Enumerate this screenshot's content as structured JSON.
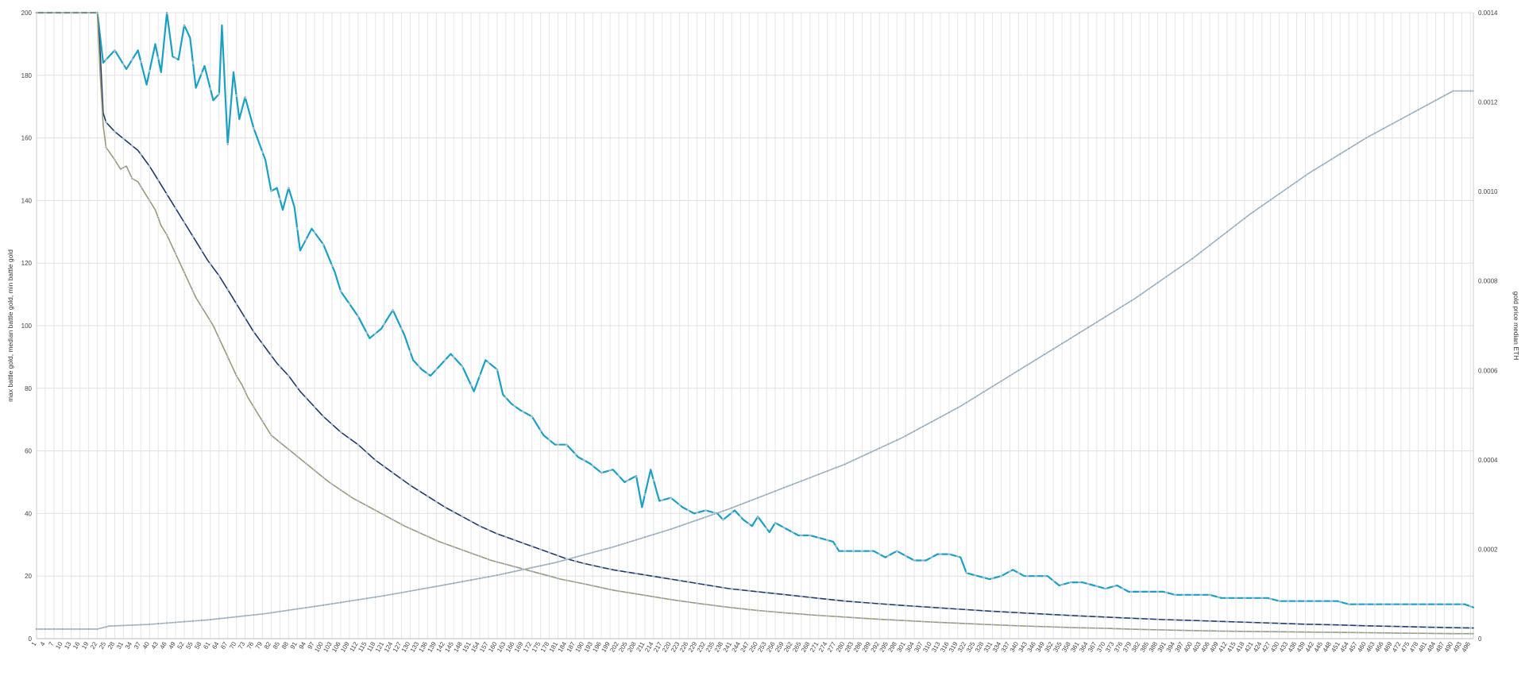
{
  "chart_data": {
    "type": "line",
    "x_start": 1,
    "x_end": 497,
    "xlim": [
      1,
      497
    ],
    "ylim_left": [
      0,
      200
    ],
    "ylim_right": [
      0,
      0.0014
    ],
    "y_left_ticks": [
      "0",
      "20",
      "40",
      "60",
      "80",
      "100",
      "120",
      "140",
      "160",
      "180",
      "200"
    ],
    "y_right_ticks": [
      "0",
      "0.0002",
      "0.0004",
      "0.0006",
      "0.0008",
      "0.0010",
      "0.0012",
      "0.0014"
    ],
    "ylabel_left": "max battle gold, median battle gold, min battle gold",
    "ylabel_right": "gold price median ETH",
    "grid": true,
    "x_tick_step": 3,
    "series": [
      {
        "name": "max battle gold",
        "axis": "left",
        "color": "#1aa0c4",
        "points": [
          [
            1,
            200
          ],
          [
            22,
            200
          ],
          [
            24,
            184
          ],
          [
            28,
            188
          ],
          [
            32,
            182
          ],
          [
            36,
            188
          ],
          [
            39,
            177
          ],
          [
            42,
            190
          ],
          [
            44,
            181
          ],
          [
            46,
            200
          ],
          [
            48,
            186
          ],
          [
            50,
            185
          ],
          [
            52,
            196
          ],
          [
            54,
            192
          ],
          [
            56,
            176
          ],
          [
            59,
            183
          ],
          [
            62,
            172
          ],
          [
            64,
            174
          ],
          [
            65,
            196
          ],
          [
            67,
            158
          ],
          [
            69,
            181
          ],
          [
            71,
            166
          ],
          [
            73,
            173
          ],
          [
            76,
            163
          ],
          [
            80,
            153
          ],
          [
            82,
            143
          ],
          [
            84,
            144
          ],
          [
            86,
            137
          ],
          [
            88,
            144
          ],
          [
            90,
            138
          ],
          [
            92,
            124
          ],
          [
            96,
            131
          ],
          [
            100,
            126
          ],
          [
            104,
            117
          ],
          [
            106,
            111
          ],
          [
            109,
            107
          ],
          [
            112,
            103
          ],
          [
            116,
            96
          ],
          [
            120,
            99
          ],
          [
            124,
            105
          ],
          [
            128,
            97
          ],
          [
            131,
            89
          ],
          [
            134,
            86
          ],
          [
            137,
            84
          ],
          [
            140,
            87
          ],
          [
            144,
            91
          ],
          [
            148,
            87
          ],
          [
            152,
            79
          ],
          [
            156,
            89
          ],
          [
            160,
            86
          ],
          [
            162,
            78
          ],
          [
            165,
            75
          ],
          [
            168,
            73
          ],
          [
            172,
            71
          ],
          [
            176,
            65
          ],
          [
            180,
            62
          ],
          [
            184,
            62
          ],
          [
            188,
            58
          ],
          [
            192,
            56
          ],
          [
            196,
            53
          ],
          [
            200,
            54
          ],
          [
            204,
            50
          ],
          [
            208,
            52
          ],
          [
            210,
            42
          ],
          [
            213,
            54
          ],
          [
            216,
            44
          ],
          [
            220,
            45
          ],
          [
            224,
            42
          ],
          [
            228,
            40
          ],
          [
            232,
            41
          ],
          [
            236,
            40
          ],
          [
            238,
            38
          ],
          [
            242,
            41
          ],
          [
            245,
            38
          ],
          [
            248,
            36
          ],
          [
            250,
            39
          ],
          [
            254,
            34
          ],
          [
            256,
            37
          ],
          [
            260,
            35
          ],
          [
            264,
            33
          ],
          [
            268,
            33
          ],
          [
            272,
            32
          ],
          [
            276,
            31
          ],
          [
            278,
            28
          ],
          [
            282,
            28
          ],
          [
            286,
            28
          ],
          [
            290,
            28
          ],
          [
            294,
            26
          ],
          [
            298,
            28
          ],
          [
            302,
            26
          ],
          [
            304,
            25
          ],
          [
            308,
            25
          ],
          [
            312,
            27
          ],
          [
            316,
            27
          ],
          [
            320,
            26
          ],
          [
            322,
            21
          ],
          [
            326,
            20
          ],
          [
            330,
            19
          ],
          [
            334,
            20
          ],
          [
            338,
            22
          ],
          [
            342,
            20
          ],
          [
            346,
            20
          ],
          [
            350,
            20
          ],
          [
            354,
            17
          ],
          [
            358,
            18
          ],
          [
            362,
            18
          ],
          [
            366,
            17
          ],
          [
            370,
            16
          ],
          [
            374,
            17
          ],
          [
            378,
            15
          ],
          [
            382,
            15
          ],
          [
            386,
            15
          ],
          [
            390,
            15
          ],
          [
            394,
            14
          ],
          [
            398,
            14
          ],
          [
            402,
            14
          ],
          [
            406,
            14
          ],
          [
            410,
            13
          ],
          [
            414,
            13
          ],
          [
            418,
            13
          ],
          [
            422,
            13
          ],
          [
            426,
            13
          ],
          [
            430,
            12
          ],
          [
            434,
            12
          ],
          [
            438,
            12
          ],
          [
            442,
            12
          ],
          [
            446,
            12
          ],
          [
            450,
            12
          ],
          [
            454,
            11
          ],
          [
            458,
            11
          ],
          [
            462,
            11
          ],
          [
            466,
            11
          ],
          [
            470,
            11
          ],
          [
            474,
            11
          ],
          [
            478,
            11
          ],
          [
            482,
            11
          ],
          [
            486,
            11
          ],
          [
            490,
            11
          ],
          [
            494,
            11
          ],
          [
            497,
            10
          ]
        ]
      },
      {
        "name": "median battle gold",
        "axis": "left",
        "color": "#1f3a6b",
        "points": [
          [
            1,
            200
          ],
          [
            22,
            200
          ],
          [
            23,
            187
          ],
          [
            24,
            168
          ],
          [
            25,
            165
          ],
          [
            28,
            162
          ],
          [
            32,
            159
          ],
          [
            36,
            156
          ],
          [
            40,
            151
          ],
          [
            44,
            145
          ],
          [
            48,
            139
          ],
          [
            52,
            133
          ],
          [
            56,
            127
          ],
          [
            60,
            121
          ],
          [
            64,
            116
          ],
          [
            68,
            110
          ],
          [
            72,
            104
          ],
          [
            76,
            98
          ],
          [
            80,
            93
          ],
          [
            84,
            88
          ],
          [
            88,
            84
          ],
          [
            92,
            79
          ],
          [
            96,
            75
          ],
          [
            100,
            71
          ],
          [
            106,
            66
          ],
          [
            112,
            62
          ],
          [
            118,
            57
          ],
          [
            124,
            53
          ],
          [
            130,
            49
          ],
          [
            136,
            45.5
          ],
          [
            142,
            42
          ],
          [
            148,
            39
          ],
          [
            154,
            36
          ],
          [
            160,
            33.5
          ],
          [
            166,
            31.5
          ],
          [
            172,
            29.5
          ],
          [
            178,
            27.5
          ],
          [
            184,
            25.5
          ],
          [
            190,
            24
          ],
          [
            200,
            22
          ],
          [
            210,
            20.5
          ],
          [
            220,
            19
          ],
          [
            230,
            17.5
          ],
          [
            240,
            16
          ],
          [
            250,
            15
          ],
          [
            260,
            14
          ],
          [
            270,
            13
          ],
          [
            280,
            12
          ],
          [
            290,
            11.3
          ],
          [
            300,
            10.6
          ],
          [
            310,
            10
          ],
          [
            320,
            9.4
          ],
          [
            330,
            8.8
          ],
          [
            340,
            8.3
          ],
          [
            350,
            7.8
          ],
          [
            360,
            7.3
          ],
          [
            370,
            6.9
          ],
          [
            380,
            6.5
          ],
          [
            390,
            6.1
          ],
          [
            400,
            5.8
          ],
          [
            410,
            5.5
          ],
          [
            420,
            5.2
          ],
          [
            430,
            4.9
          ],
          [
            440,
            4.6
          ],
          [
            450,
            4.4
          ],
          [
            460,
            4.1
          ],
          [
            470,
            3.9
          ],
          [
            480,
            3.7
          ],
          [
            490,
            3.5
          ],
          [
            497,
            3.4
          ]
        ]
      },
      {
        "name": "min battle gold",
        "axis": "left",
        "color": "#9a9a7a",
        "points": [
          [
            1,
            200
          ],
          [
            22,
            200
          ],
          [
            23,
            180
          ],
          [
            24,
            164
          ],
          [
            25,
            157
          ],
          [
            28,
            153
          ],
          [
            30,
            150
          ],
          [
            32,
            151
          ],
          [
            34,
            147
          ],
          [
            36,
            146
          ],
          [
            38,
            143
          ],
          [
            40,
            140
          ],
          [
            42,
            137
          ],
          [
            44,
            132
          ],
          [
            46,
            129
          ],
          [
            48,
            125
          ],
          [
            50,
            121
          ],
          [
            52,
            117
          ],
          [
            54,
            113
          ],
          [
            56,
            109
          ],
          [
            58,
            106
          ],
          [
            60,
            103
          ],
          [
            62,
            100
          ],
          [
            64,
            96
          ],
          [
            66,
            92
          ],
          [
            68,
            88
          ],
          [
            70,
            84
          ],
          [
            72,
            81
          ],
          [
            74,
            77
          ],
          [
            76,
            74
          ],
          [
            78,
            71
          ],
          [
            80,
            68
          ],
          [
            82,
            65
          ],
          [
            86,
            62
          ],
          [
            90,
            59
          ],
          [
            94,
            56
          ],
          [
            98,
            53
          ],
          [
            102,
            50
          ],
          [
            106,
            47.5
          ],
          [
            110,
            45
          ],
          [
            116,
            42
          ],
          [
            122,
            39
          ],
          [
            128,
            36
          ],
          [
            134,
            33.5
          ],
          [
            140,
            31
          ],
          [
            146,
            29
          ],
          [
            152,
            27
          ],
          [
            158,
            25
          ],
          [
            164,
            23.5
          ],
          [
            170,
            22
          ],
          [
            176,
            20.5
          ],
          [
            182,
            19
          ],
          [
            190,
            17.5
          ],
          [
            200,
            15.5
          ],
          [
            210,
            14
          ],
          [
            220,
            12.5
          ],
          [
            230,
            11.2
          ],
          [
            240,
            10
          ],
          [
            250,
            9
          ],
          [
            260,
            8.2
          ],
          [
            270,
            7.5
          ],
          [
            280,
            6.9
          ],
          [
            290,
            6.3
          ],
          [
            300,
            5.8
          ],
          [
            310,
            5.3
          ],
          [
            320,
            4.9
          ],
          [
            330,
            4.5
          ],
          [
            340,
            4.1
          ],
          [
            350,
            3.8
          ],
          [
            360,
            3.5
          ],
          [
            370,
            3.3
          ],
          [
            380,
            3.0
          ],
          [
            390,
            2.8
          ],
          [
            400,
            2.6
          ],
          [
            410,
            2.4
          ],
          [
            420,
            2.3
          ],
          [
            430,
            2.2
          ],
          [
            440,
            2.1
          ],
          [
            450,
            2.0
          ],
          [
            460,
            1.9
          ],
          [
            470,
            1.8
          ],
          [
            480,
            1.7
          ],
          [
            490,
            1.6
          ],
          [
            497,
            1.6
          ]
        ]
      },
      {
        "name": "gold price median ETH",
        "axis": "right",
        "color": "#9ab0c0",
        "points": [
          [
            1,
            2.15e-05
          ],
          [
            22,
            2.15e-05
          ],
          [
            26,
            2.8e-05
          ],
          [
            40,
            3.2e-05
          ],
          [
            60,
            4.2e-05
          ],
          [
            80,
            5.6e-05
          ],
          [
            100,
            7.5e-05
          ],
          [
            120,
            9.5e-05
          ],
          [
            140,
            0.000118
          ],
          [
            160,
            0.000142
          ],
          [
            180,
            0.00017
          ],
          [
            200,
            0.000205
          ],
          [
            220,
            0.000245
          ],
          [
            240,
            0.00029
          ],
          [
            260,
            0.00034
          ],
          [
            280,
            0.00039
          ],
          [
            300,
            0.00045
          ],
          [
            320,
            0.00052
          ],
          [
            340,
            0.0006
          ],
          [
            360,
            0.00068
          ],
          [
            380,
            0.00076
          ],
          [
            400,
            0.00085
          ],
          [
            420,
            0.00095
          ],
          [
            440,
            0.00104
          ],
          [
            460,
            0.00112
          ],
          [
            480,
            0.00119
          ],
          [
            490,
            0.001225
          ],
          [
            497,
            0.001225
          ]
        ]
      }
    ]
  }
}
